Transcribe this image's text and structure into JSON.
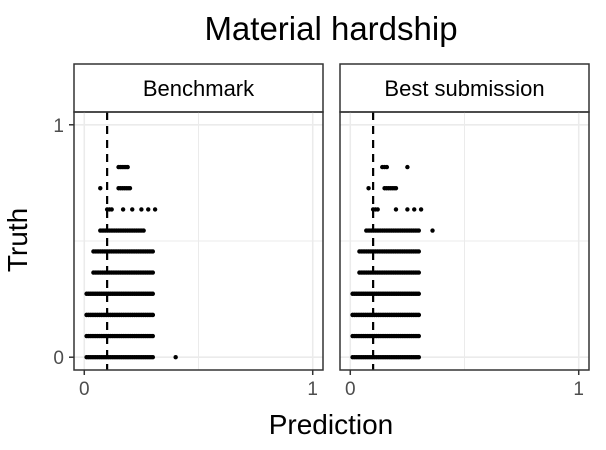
{
  "chart_data": {
    "type": "scatter",
    "title": "Material hardship",
    "xlabel": "Prediction",
    "ylabel": "Truth",
    "xlim": [
      0,
      1
    ],
    "ylim": [
      0,
      1
    ],
    "x_ticks": [
      "0",
      "1"
    ],
    "y_ticks": [
      "0",
      "1"
    ],
    "grid": true,
    "reference_line": {
      "axis": "x",
      "value": 0.1,
      "style": "dashed"
    },
    "panels": [
      {
        "name": "Benchmark",
        "rows": [
          {
            "y": 0.0,
            "x_min": 0.01,
            "x_max": 0.3,
            "outliers": [
              0.4
            ]
          },
          {
            "y": 0.091,
            "x_min": 0.01,
            "x_max": 0.3,
            "outliers": []
          },
          {
            "y": 0.182,
            "x_min": 0.01,
            "x_max": 0.3,
            "outliers": []
          },
          {
            "y": 0.182,
            "x_min": 0.01,
            "x_max": 0.3,
            "outliers": []
          },
          {
            "y": 0.273,
            "x_min": 0.01,
            "x_max": 0.3,
            "outliers": []
          },
          {
            "y": 0.364,
            "x_min": 0.04,
            "x_max": 0.3,
            "outliers": []
          },
          {
            "y": 0.455,
            "x_min": 0.04,
            "x_max": 0.3,
            "outliers": []
          },
          {
            "y": 0.545,
            "x_min": 0.07,
            "x_max": 0.26,
            "outliers": []
          },
          {
            "y": 0.636,
            "x_min": 0.1,
            "x_max": 0.12,
            "outliers": [
              0.17,
              0.21,
              0.25,
              0.28,
              0.31
            ]
          },
          {
            "y": 0.727,
            "x_min": 0.15,
            "x_max": 0.2,
            "outliers": [
              0.07
            ]
          },
          {
            "y": 0.818,
            "x_min": 0.15,
            "x_max": 0.19,
            "outliers": []
          }
        ]
      },
      {
        "name": "Best submission",
        "rows": [
          {
            "y": 0.0,
            "x_min": 0.01,
            "x_max": 0.3,
            "outliers": []
          },
          {
            "y": 0.091,
            "x_min": 0.01,
            "x_max": 0.3,
            "outliers": []
          },
          {
            "y": 0.182,
            "x_min": 0.01,
            "x_max": 0.3,
            "outliers": []
          },
          {
            "y": 0.182,
            "x_min": 0.01,
            "x_max": 0.3,
            "outliers": []
          },
          {
            "y": 0.273,
            "x_min": 0.01,
            "x_max": 0.3,
            "outliers": []
          },
          {
            "y": 0.364,
            "x_min": 0.04,
            "x_max": 0.3,
            "outliers": []
          },
          {
            "y": 0.455,
            "x_min": 0.04,
            "x_max": 0.3,
            "outliers": []
          },
          {
            "y": 0.545,
            "x_min": 0.07,
            "x_max": 0.3,
            "outliers": [
              0.36
            ]
          },
          {
            "y": 0.636,
            "x_min": 0.1,
            "x_max": 0.12,
            "outliers": [
              0.2,
              0.25,
              0.28,
              0.31
            ]
          },
          {
            "y": 0.727,
            "x_min": 0.15,
            "x_max": 0.2,
            "outliers": [
              0.08
            ]
          },
          {
            "y": 0.818,
            "x_min": 0.14,
            "x_max": 0.16,
            "outliers": [
              0.25
            ]
          }
        ]
      }
    ]
  },
  "colors": {
    "point": "#000000",
    "strip_fill": "#ffffff",
    "panel_border": "#333333",
    "grid": "#ebebeb",
    "tick_text": "#4d4d4d"
  }
}
